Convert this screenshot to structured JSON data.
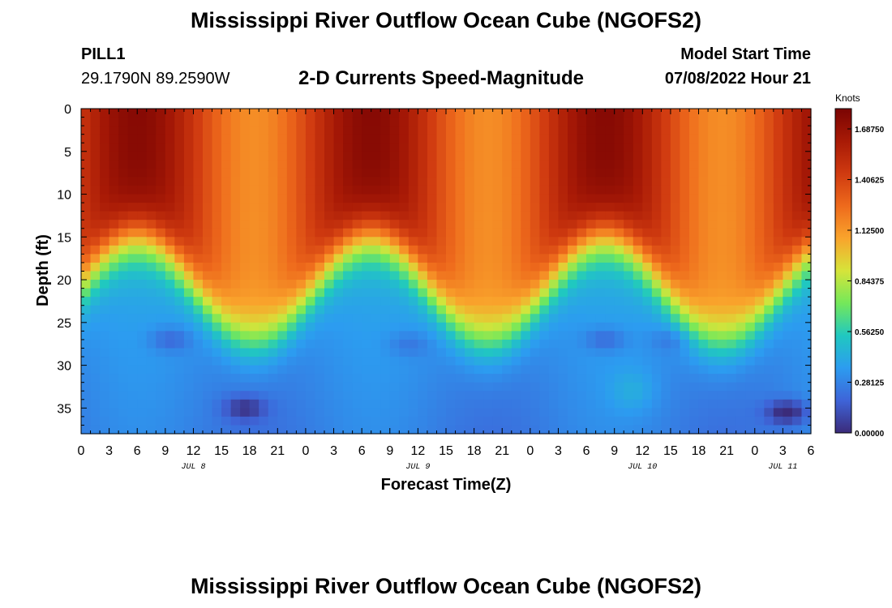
{
  "header": {
    "title": "Mississippi River Outflow Ocean Cube (NGOFS2)",
    "station_id": "PILL1",
    "station_coords": "29.1790N  89.2590W",
    "product": "2-D Currents Speed-Magnitude",
    "model_start_label": "Model Start Time",
    "model_start_value": "07/08/2022 Hour 21"
  },
  "footer": {
    "title": "Mississippi River Outflow Ocean Cube (NGOFS2)"
  },
  "chart_data": {
    "type": "heatmap",
    "title": "2-D Currents Speed-Magnitude",
    "xlabel": "Forecast Time(Z)",
    "ylabel": "Depth (ft)",
    "x_range_hours": [
      0,
      78
    ],
    "ylim": [
      0,
      38
    ],
    "x_tick_labels": [
      "0",
      "3",
      "6",
      "9",
      "12",
      "15",
      "18",
      "21",
      "0",
      "3",
      "6",
      "9",
      "12",
      "15",
      "18",
      "21",
      "0",
      "3",
      "6",
      "9",
      "12",
      "15",
      "18",
      "21",
      "0",
      "3",
      "6"
    ],
    "y_ticks": [
      0,
      5,
      10,
      15,
      20,
      25,
      30,
      35
    ],
    "day_labels": [
      {
        "label": "JUL 8",
        "hour": 12
      },
      {
        "label": "JUL 9",
        "hour": 36
      },
      {
        "label": "JUL 10",
        "hour": 60
      },
      {
        "label": "JUL 11",
        "hour": 75
      }
    ],
    "colorbar": {
      "unit": "Knots",
      "min": 0.0,
      "max": 1.8,
      "tick_labels": [
        "0.00000",
        "0.28125",
        "0.56250",
        "0.84375",
        "1.12500",
        "1.40625",
        "1.68750"
      ],
      "tick_values": [
        0.0,
        0.28125,
        0.5625,
        0.84375,
        1.125,
        1.40625,
        1.6875
      ],
      "colors": [
        "#3b2b7a",
        "#3e64d8",
        "#2c9cf0",
        "#20c8c0",
        "#74e85a",
        "#d6e43a",
        "#f9a42c",
        "#ee6a1c",
        "#cf3a10",
        "#a81a06",
        "#7a0403"
      ]
    },
    "field_description": {
      "surface_speed_knots": [
        1.2,
        1.75
      ],
      "deep_speed_knots": [
        0.15,
        0.35
      ],
      "thermocline_depth_ft_range": [
        15,
        27
      ],
      "thermocline_period_hours": 25,
      "peak_hours": [
        6,
        31,
        56
      ]
    }
  }
}
